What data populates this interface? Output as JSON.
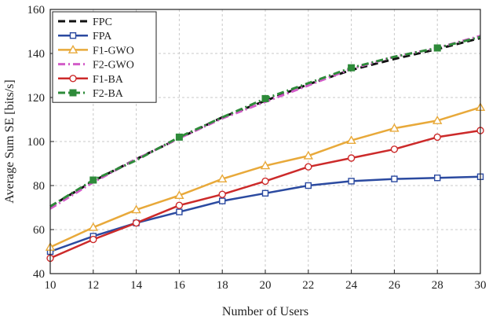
{
  "chart_data": {
    "type": "line",
    "title": "",
    "xlabel": "Number of Users",
    "ylabel": "Average Sum SE [bits/s]",
    "x": [
      10,
      12,
      14,
      16,
      18,
      20,
      22,
      24,
      26,
      28,
      30
    ],
    "xlim": [
      10,
      30
    ],
    "ylim": [
      40,
      160
    ],
    "xticks": [
      10,
      12,
      14,
      16,
      18,
      20,
      22,
      24,
      26,
      28,
      30
    ],
    "yticks": [
      40,
      60,
      80,
      100,
      120,
      140,
      160
    ],
    "grid": true,
    "legend_position": "top-left",
    "series": [
      {
        "name": "FPC",
        "color": "#111111",
        "style": "dashed",
        "marker": "none",
        "values": [
          70.5,
          82,
          92,
          101.5,
          111,
          118.5,
          126,
          132.5,
          137.5,
          142,
          147
        ]
      },
      {
        "name": "FPA",
        "color": "#2b4aa0",
        "style": "solid",
        "marker": "square",
        "values": [
          50,
          57,
          63,
          68,
          73,
          76.5,
          80,
          82,
          83,
          83.5,
          84
        ]
      },
      {
        "name": "F1-GWO",
        "color": "#e8a93a",
        "style": "solid",
        "marker": "triangle",
        "values": [
          52,
          61,
          69,
          75.5,
          83,
          89,
          93.5,
          100.5,
          106,
          109.5,
          115.5
        ]
      },
      {
        "name": "F2-GWO",
        "color": "#d25cc8",
        "style": "dashdot",
        "marker": "none",
        "values": [
          69.5,
          81.5,
          92,
          101.5,
          110.5,
          118,
          125.5,
          133,
          138.5,
          142.5,
          148
        ]
      },
      {
        "name": "F1-BA",
        "color": "#cc2a2a",
        "style": "solid",
        "marker": "circle",
        "values": [
          47,
          55.5,
          63,
          71,
          76,
          82,
          88.5,
          92.5,
          96.5,
          102,
          105
        ]
      },
      {
        "name": "F2-BA",
        "color": "#2e8b3a",
        "style": "dashdot",
        "marker": "square-filled",
        "values": [
          70.5,
          82.5,
          91.5,
          102,
          111,
          119.5,
          126.5,
          133.5,
          138.5,
          142.5,
          147.5
        ]
      }
    ]
  }
}
